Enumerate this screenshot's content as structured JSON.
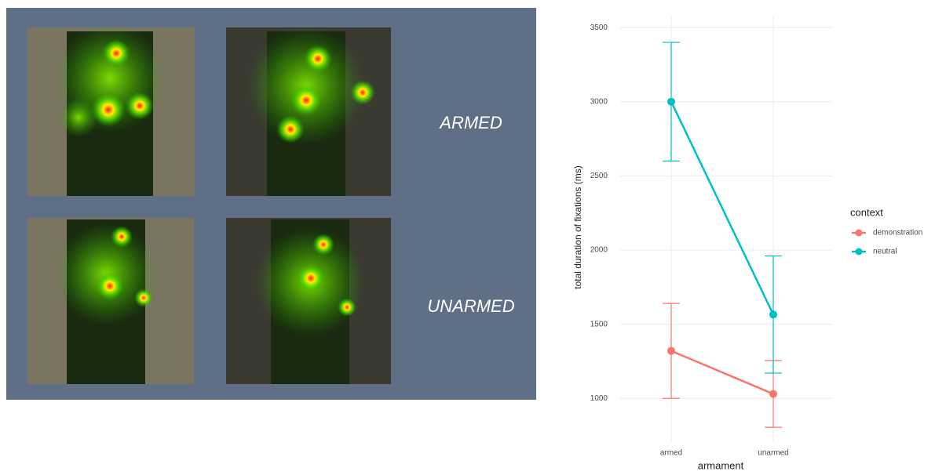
{
  "panel": {
    "labels": [
      "ARMED",
      "UNARMED"
    ]
  },
  "chart_data": {
    "type": "line",
    "x_label": "armament",
    "y_label": "total duration of fixations (ms)",
    "categories": [
      "armed",
      "unarmed"
    ],
    "legend_title": "context",
    "series": [
      {
        "name": "demonstration",
        "color": "#f8766d",
        "values": [
          1320,
          1030
        ],
        "error": [
          320,
          225
        ]
      },
      {
        "name": "neutral",
        "color": "#00bfc4",
        "values": [
          3000,
          1565
        ],
        "error": [
          400,
          395
        ]
      }
    ],
    "ylim": [
      700,
      3580
    ],
    "yticks": [
      1000,
      1500,
      2000,
      2500,
      3000,
      3500
    ],
    "grid": true,
    "legend_position": "right"
  }
}
